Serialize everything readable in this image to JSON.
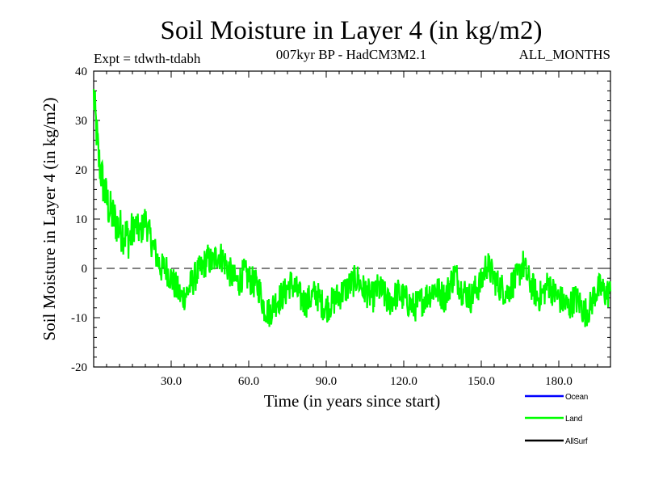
{
  "header": {
    "title": "Soil Moisture in Layer 4 (in kg/m2)",
    "expt": "Expt = tdwth-tdabh",
    "subtitle": "007kyr BP - HadCM3M2.1",
    "months": "ALL_MONTHS"
  },
  "colors": {
    "ocean": "#0000ff",
    "land": "#00ff00",
    "allsurf": "#000000",
    "axis": "#000000"
  },
  "chart_data": {
    "type": "line",
    "title": "Soil Moisture in Layer 4 (in kg/m2)",
    "xlabel": "Time (in years since start)",
    "ylabel": "Soil Moisture in Layer 4 (in kg/m2)",
    "xlim": [
      0,
      200
    ],
    "ylim": [
      -20,
      40
    ],
    "x_ticks": [
      30,
      60,
      90,
      120,
      150,
      180
    ],
    "x_tick_labels": [
      "30.0",
      "60.0",
      "90.0",
      "120.0",
      "150.0",
      "180.0"
    ],
    "y_ticks": [
      -20,
      -10,
      0,
      10,
      20,
      30,
      40
    ],
    "y_tick_labels": [
      "-20",
      "-10",
      "0",
      "10",
      "20",
      "30",
      "40"
    ],
    "reference_line": 0,
    "legend": {
      "placement": "bottom-right",
      "entries": [
        "Ocean",
        "Land",
        "AllSurf"
      ]
    },
    "series": [
      {
        "name": "Land",
        "color": "#00ff00",
        "x": [
          0,
          2,
          4,
          6,
          8,
          10,
          12,
          14,
          16,
          18,
          20,
          22,
          24,
          26,
          28,
          30,
          32,
          34,
          36,
          38,
          40,
          42,
          44,
          46,
          48,
          50,
          52,
          54,
          56,
          58,
          60,
          62,
          64,
          66,
          68,
          70,
          72,
          74,
          76,
          78,
          80,
          82,
          84,
          86,
          88,
          90,
          92,
          94,
          96,
          98,
          100,
          102,
          104,
          106,
          108,
          110,
          112,
          114,
          116,
          118,
          120,
          122,
          124,
          126,
          128,
          130,
          132,
          134,
          136,
          138,
          140,
          142,
          144,
          146,
          148,
          150,
          152,
          154,
          156,
          158,
          160,
          162,
          164,
          166,
          168,
          170,
          172,
          174,
          176,
          178,
          180,
          182,
          184,
          186,
          188,
          190,
          192,
          194,
          196,
          198,
          200
        ],
        "values": [
          35,
          22,
          16,
          12,
          10,
          8,
          7,
          6,
          9,
          7,
          10,
          6,
          3,
          0,
          0,
          -2,
          -4,
          -6,
          -5,
          -3,
          -1,
          0,
          2,
          1,
          3,
          2,
          0,
          -2,
          -3,
          -1,
          -2,
          -3,
          -4,
          -8,
          -9,
          -7,
          -6,
          -5,
          -3,
          -4,
          -6,
          -7,
          -6,
          -5,
          -7,
          -8,
          -7,
          -6,
          -5,
          -4,
          -3,
          -2,
          -4,
          -5,
          -6,
          -4,
          -5,
          -7,
          -6,
          -5,
          -6,
          -7,
          -8,
          -7,
          -6,
          -5,
          -4,
          -5,
          -6,
          -3,
          -1,
          -4,
          -5,
          -6,
          -4,
          -3,
          1,
          -1,
          -3,
          -4,
          -5,
          -3,
          -2,
          1,
          -2,
          -4,
          -6,
          -5,
          -3,
          -5,
          -6,
          -7,
          -8,
          -6,
          -7,
          -9,
          -8,
          -5,
          -4,
          -5,
          -5
        ]
      }
    ]
  }
}
